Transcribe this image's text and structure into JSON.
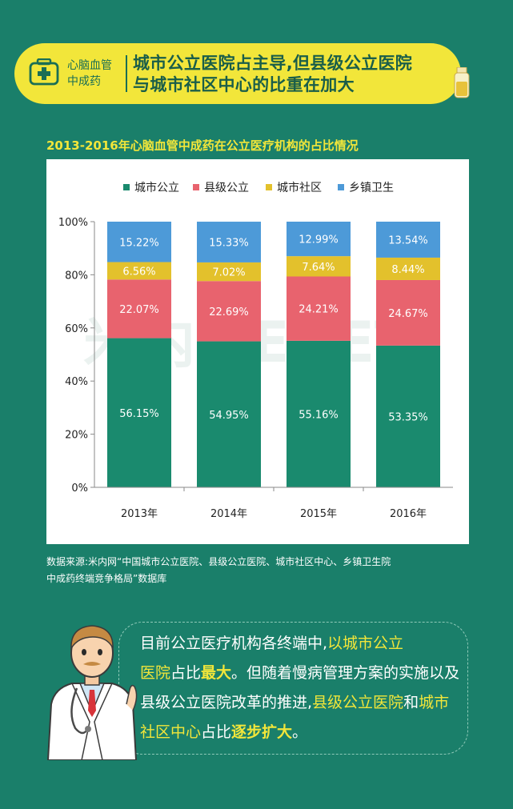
{
  "header": {
    "category_line1": "心脑血管",
    "category_line2": "中成药",
    "title_line1": "城市公立医院占主导,但县级公立医院",
    "title_line2": "与城市社区中心的比重在加大"
  },
  "chart_title": "2013-2016年心脑血管中成药在公立医疗机构的占比情况",
  "watermark": "米内MENET",
  "chart_data": {
    "type": "bar",
    "stacked": true,
    "categories": [
      "2013年",
      "2014年",
      "2015年",
      "2016年"
    ],
    "series": [
      {
        "name": "城市公立",
        "color": "#1a8a6e",
        "values": [
          56.15,
          54.95,
          55.16,
          53.35
        ],
        "labels": [
          "56.15%",
          "54.95%",
          "55.16%",
          "53.35%"
        ]
      },
      {
        "name": "县级公立",
        "color": "#e8636e",
        "values": [
          22.07,
          22.69,
          24.21,
          24.67
        ],
        "labels": [
          "22.07%",
          "22.69%",
          "24.21%",
          "24.67%"
        ]
      },
      {
        "name": "城市社区",
        "color": "#e3c12c",
        "values": [
          6.56,
          7.02,
          7.64,
          8.44
        ],
        "labels": [
          "6.56%",
          "7.02%",
          "7.64%",
          "8.44%"
        ]
      },
      {
        "name": "乡镇卫生",
        "color": "#4d9ad8",
        "values": [
          15.22,
          15.33,
          12.99,
          13.54
        ],
        "labels": [
          "15.22%",
          "15.33%",
          "12.99%",
          "13.54%"
        ]
      }
    ],
    "ylim": [
      0,
      100
    ],
    "yticks": [
      "0%",
      "20%",
      "40%",
      "60%",
      "80%",
      "100%"
    ],
    "legend_position": "top"
  },
  "source": {
    "line1": "数据来源:米内网“中国城市公立医院、县级公立医院、城市社区中心、乡镇卫生院",
    "line2": "中成药终端竞争格局”数据库"
  },
  "comment": {
    "p1": "目前公立医疗机构各终端中,",
    "h1": "以城市公立",
    "h1b": "医院",
    "p2": "占比",
    "b1": "最大",
    "p3": "。但随着慢病管理方案的实施以及县级公立医院改革的推进,",
    "h2": "县级公立医院",
    "p4": "和",
    "h3": "城市社区中心",
    "p5": "占比",
    "b2": "逐步扩大",
    "p6": "。"
  }
}
